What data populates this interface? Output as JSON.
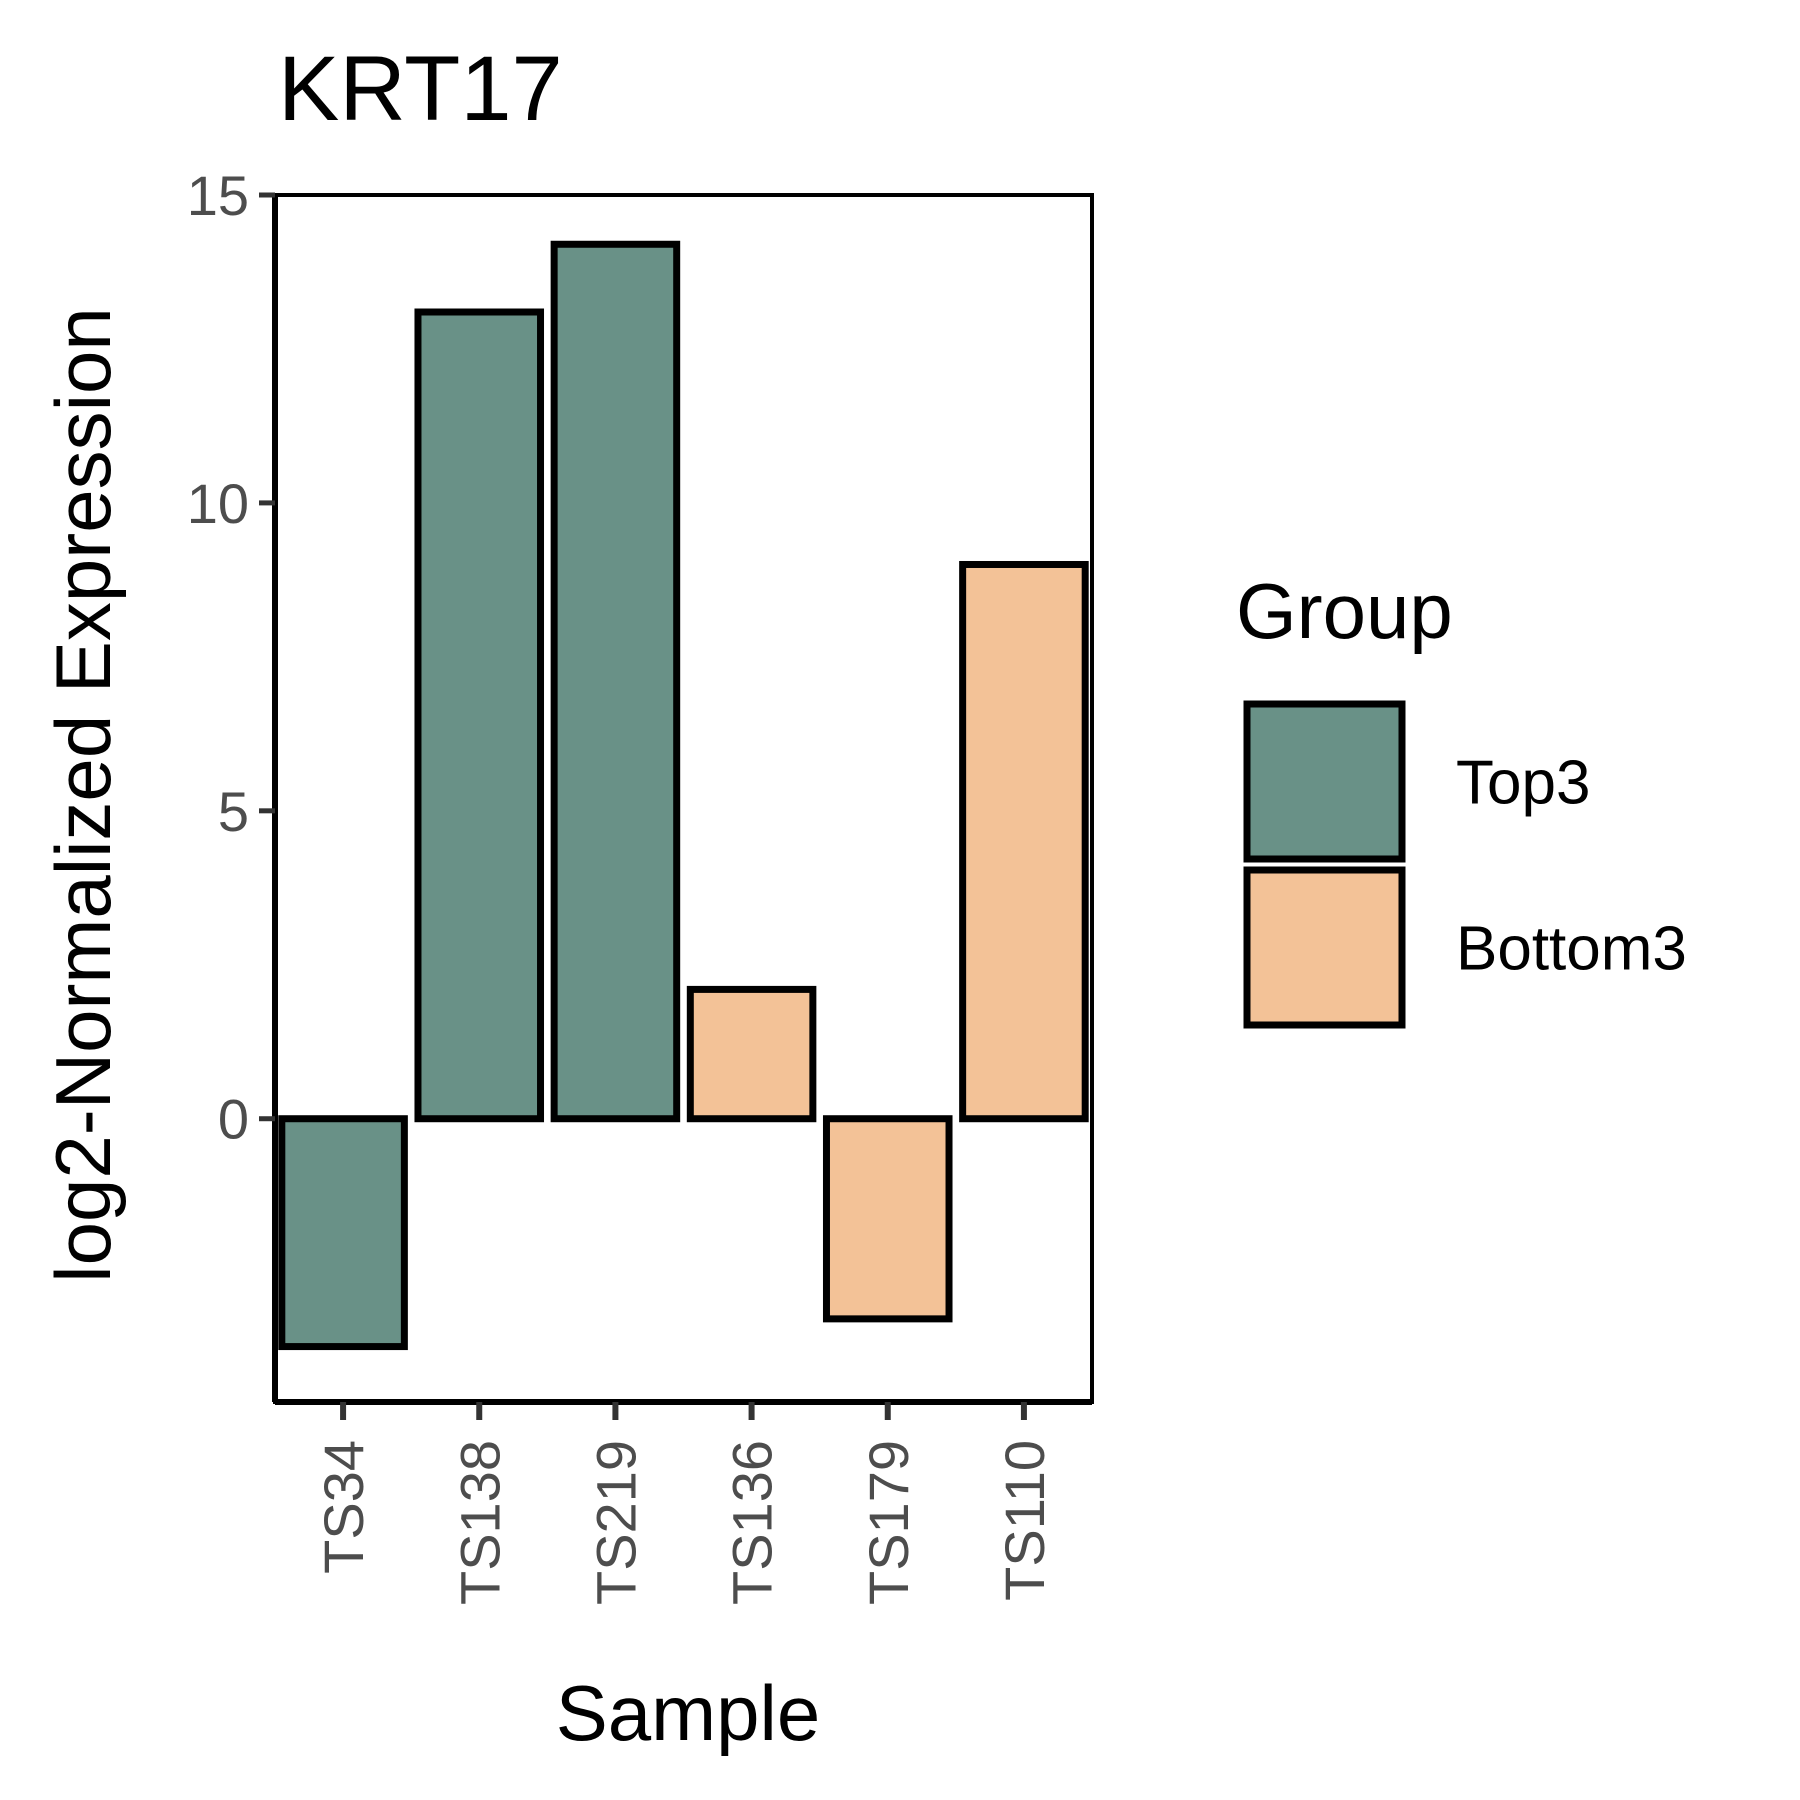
{
  "chart_data": {
    "type": "bar",
    "title": "KRT17",
    "xlabel": "Sample",
    "ylabel": "log2-Normalized Expression",
    "categories": [
      "TS34",
      "TS138",
      "TS219",
      "TS136",
      "TS179",
      "TS110"
    ],
    "values": [
      -3.7,
      13.1,
      14.2,
      2.1,
      -3.25,
      9.0
    ],
    "groups": [
      "Top3",
      "Top3",
      "Top3",
      "Bottom3",
      "Bottom3",
      "Bottom3"
    ],
    "ylim": [
      -4.6,
      15
    ],
    "yticks": [
      0,
      5,
      10,
      15
    ],
    "ytick_labels": [
      "0",
      "5",
      "10",
      "15"
    ],
    "grid": false,
    "legend": {
      "title": "Group",
      "placement": "right",
      "entries": [
        {
          "name": "Top3",
          "color": "#699187"
        },
        {
          "name": "Bottom3",
          "color": "#f3c297"
        }
      ]
    }
  }
}
